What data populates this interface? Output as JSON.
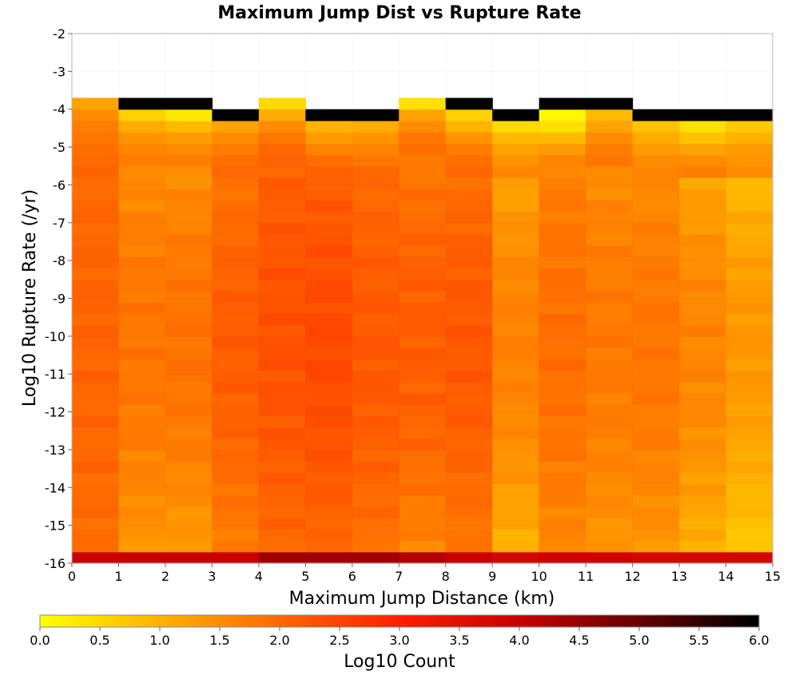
{
  "chart_data": {
    "type": "heatmap",
    "title": "Maximum Jump Dist vs Rupture Rate",
    "xlabel": "Maximum Jump Distance (km)",
    "ylabel": "Log10 Rupture Rate (/yr)",
    "xlim": [
      0,
      15
    ],
    "ylim": [
      -16,
      -2
    ],
    "x_ticks": [
      "0",
      "1",
      "2",
      "3",
      "4",
      "5",
      "6",
      "7",
      "8",
      "9",
      "10",
      "11",
      "12",
      "13",
      "14",
      "15"
    ],
    "y_ticks": [
      "-2",
      "-3",
      "-4",
      "-5",
      "-6",
      "-7",
      "-8",
      "-9",
      "-10",
      "-11",
      "-12",
      "-13",
      "-14",
      "-15",
      "-16"
    ],
    "grid": true,
    "x_bin_width": 1,
    "y_bin_height": 0.3,
    "colorbar": {
      "label": "Log10 Count",
      "min": 0.0,
      "max": 6.0,
      "ticks": [
        "0.0",
        "0.5",
        "1.0",
        "1.5",
        "2.0",
        "2.5",
        "3.0",
        "3.5",
        "4.0",
        "4.5",
        "5.0",
        "5.5",
        "6.0"
      ],
      "colors": [
        "#ffff00",
        "#ff8c00",
        "#ff1e00",
        "#c80000",
        "#000000"
      ],
      "color_stops": [
        0.0,
        1.5,
        3.0,
        4.0,
        6.0
      ]
    },
    "columns": [
      {
        "x0": 0,
        "top": -3.6,
        "low": [
          1.2,
          1.5,
          1.7,
          1.8,
          1.9
        ],
        "mid": 2.05,
        "bottom": 1.9,
        "edge": 4.0
      },
      {
        "x0": 1,
        "top": -3.85,
        "low": [
          0.6,
          1.1,
          1.4,
          1.6,
          1.7
        ],
        "mid": 1.8,
        "bottom": 1.3,
        "edge": 4.0
      },
      {
        "x0": 2,
        "top": -3.85,
        "low": [
          0.3,
          0.9,
          1.3,
          1.5,
          1.7
        ],
        "mid": 1.85,
        "bottom": 1.2,
        "edge": 4.0
      },
      {
        "x0": 3,
        "top": -4.15,
        "low": [
          1.2,
          1.5,
          1.7,
          1.9,
          2.0
        ],
        "mid": 2.15,
        "bottom": 1.6,
        "edge": 4.0
      },
      {
        "x0": 4,
        "top": -3.6,
        "low": [
          0.5,
          1.1,
          1.5,
          1.8,
          2.0
        ],
        "mid": 2.3,
        "bottom": 1.9,
        "edge": 4.4
      },
      {
        "x0": 5,
        "top": -4.15,
        "low": [
          1.0,
          1.3,
          1.6,
          1.9,
          2.1
        ],
        "mid": 2.4,
        "bottom": 1.9,
        "edge": 4.4
      },
      {
        "x0": 6,
        "top": -4.15,
        "low": [
          1.1,
          1.4,
          1.6,
          1.8,
          2.0
        ],
        "mid": 2.2,
        "bottom": 1.8,
        "edge": 4.4
      },
      {
        "x0": 7,
        "top": -3.6,
        "low": [
          0.4,
          1.2,
          1.5,
          1.8,
          1.9
        ],
        "mid": 2.15,
        "bottom": 1.5,
        "edge": 4.2
      },
      {
        "x0": 8,
        "top": -3.85,
        "low": [
          0.6,
          1.0,
          1.4,
          1.7,
          1.9
        ],
        "mid": 2.2,
        "bottom": 1.7,
        "edge": 4.0
      },
      {
        "x0": 9,
        "top": -4.15,
        "low": [
          0.5,
          0.9,
          1.2,
          1.4,
          1.6
        ],
        "mid": 1.65,
        "bottom": 0.9,
        "edge": 3.8
      },
      {
        "x0": 10,
        "top": -3.85,
        "low": [
          0.1,
          0.4,
          0.9,
          1.3,
          1.6
        ],
        "mid": 1.9,
        "bottom": 1.5,
        "edge": 3.9
      },
      {
        "x0": 11,
        "top": -3.85,
        "low": [
          0.9,
          1.2,
          1.5,
          1.7,
          1.8
        ],
        "mid": 1.75,
        "bottom": 1.3,
        "edge": 3.9
      },
      {
        "x0": 12,
        "top": -4.15,
        "low": [
          0.8,
          1.1,
          1.3,
          1.5,
          1.6
        ],
        "mid": 1.8,
        "bottom": 1.3,
        "edge": 3.8
      },
      {
        "x0": 13,
        "top": -4.15,
        "low": [
          0.4,
          0.8,
          1.2,
          1.5,
          1.7
        ],
        "mid": 1.6,
        "bottom": 0.9,
        "edge": 3.8
      },
      {
        "x0": 14,
        "top": -4.15,
        "low": [
          0.7,
          1.0,
          1.3,
          1.4,
          1.5
        ],
        "mid": 1.35,
        "bottom": 0.6,
        "edge": 3.8
      }
    ]
  }
}
